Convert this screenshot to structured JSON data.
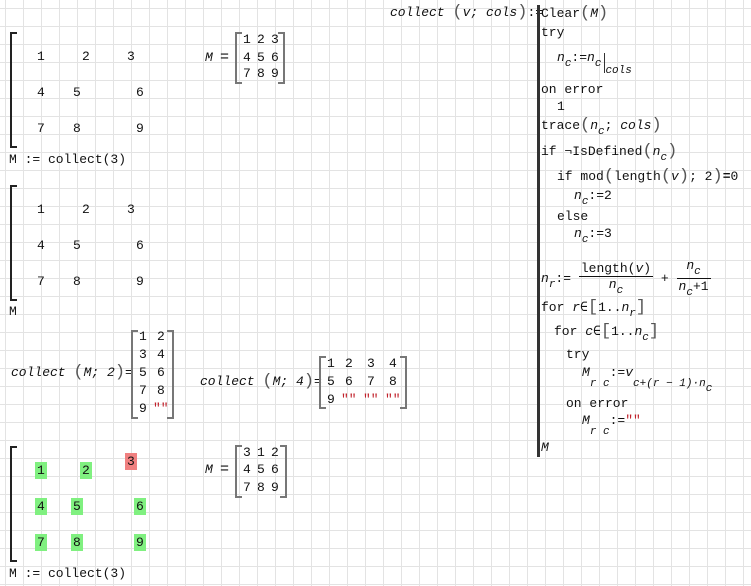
{
  "colors": {
    "string": "#c0202a",
    "highlight_ok": "#80f080",
    "highlight_error": "#f08080",
    "grid": "#e3e3e3"
  },
  "trace_matrix_1": {
    "cells": [
      "1",
      "2",
      "3",
      "4",
      "5",
      "6",
      "7",
      "8",
      "9"
    ],
    "assign": "M := collect(3)"
  },
  "trace_matrix_2": {
    "cells": [
      "1",
      "2",
      "3",
      "4",
      "5",
      "6",
      "7",
      "8",
      "9"
    ],
    "result_label": "M"
  },
  "trace_matrix_3": {
    "cells": [
      "1",
      "2",
      "3",
      "4",
      "5",
      "6",
      "7",
      "8",
      "9"
    ],
    "assign": "M := collect(3)"
  },
  "eval_m1": {
    "label": "M",
    "eq": "=",
    "cells": [
      "1",
      "2",
      "3",
      "4",
      "5",
      "6",
      "7",
      "8",
      "9"
    ]
  },
  "eval_m2": {
    "label": "M",
    "eq": "=",
    "cells": [
      "3",
      "1",
      "2",
      "4",
      "5",
      "6",
      "7",
      "8",
      "9"
    ]
  },
  "collect2": {
    "call": "collect",
    "args": "M; 2",
    "eq": "=",
    "cells": [
      "1",
      "2",
      "3",
      "4",
      "5",
      "6",
      "7",
      "8",
      "9",
      "\"\""
    ]
  },
  "collect4": {
    "call": "collect",
    "args": "M; 4",
    "eq": "=",
    "cells": [
      "1",
      "2",
      "3",
      "4",
      "5",
      "6",
      "7",
      "8",
      "9",
      "\"\"",
      "\"\"",
      "\"\""
    ]
  },
  "program": {
    "header": "collect",
    "params": "v; cols",
    "def": ":=",
    "lines": {
      "clear": "Clear",
      "clear_arg": "M",
      "try1": "try",
      "nc": "n",
      "c": "c",
      "assign": ":=",
      "cols": "cols",
      "on_error1": "on error",
      "one": "1",
      "trace": "trace",
      "if1": "if",
      "not": "¬",
      "isdefined": "IsDefined",
      "if2": "if",
      "mod": "mod",
      "length": "length",
      "v": "v",
      "two": "2",
      "eqb": "=",
      "zero": "0",
      "val2": "2",
      "else": "else",
      "val3": "3",
      "nr": "n",
      "r": "r",
      "plus": "+",
      "plus1": "1",
      "for": "for",
      "in": "∈",
      "range": "1..",
      "try2": "try",
      "M": "M",
      "rc": "r c",
      "minus1": "r − 1",
      "dot": "·",
      "on_error2": "on error",
      "empty": "\"\"",
      "result": "M"
    }
  }
}
